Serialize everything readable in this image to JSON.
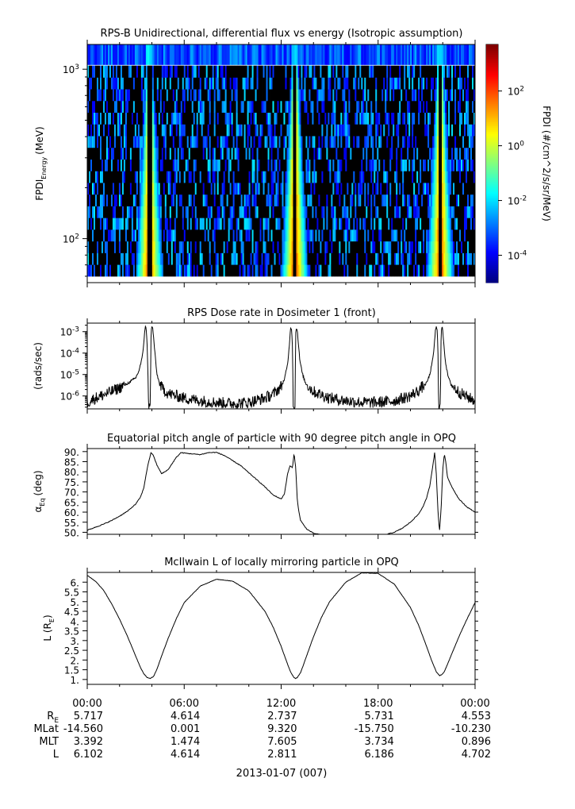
{
  "date_label": "2013-01-07 (007)",
  "ephemeris": {
    "times": [
      "00:00",
      "06:00",
      "12:00",
      "18:00",
      "00:00"
    ],
    "rows": [
      {
        "label": "R",
        "sub": "E",
        "values": [
          "5.717",
          "4.614",
          "2.737",
          "5.731",
          "4.553"
        ]
      },
      {
        "label": "MLat",
        "sub": "",
        "values": [
          "-14.560",
          "0.001",
          "9.320",
          "-15.750",
          "-10.230"
        ]
      },
      {
        "label": "MLT",
        "sub": "",
        "values": [
          "3.392",
          "1.474",
          "7.605",
          "3.734",
          "0.896"
        ]
      },
      {
        "label": "L",
        "sub": "",
        "values": [
          "6.102",
          "4.614",
          "2.811",
          "6.186",
          "4.702"
        ]
      }
    ]
  },
  "chart_data": [
    {
      "type": "heatmap",
      "title": "RPS-B  Unidirectional, differential flux vs energy (Isotropic assumption)",
      "ylabel": "FPDI",
      "ylabel_sub": "Energy",
      "ylabel_unit": "(MeV)",
      "yscale": "log",
      "ylim": [
        55,
        1400
      ],
      "yticks": [
        {
          "value": 100,
          "base": "10",
          "exp": "2"
        },
        {
          "value": 1000,
          "base": "10",
          "exp": "3"
        }
      ],
      "xlim_hours": [
        0,
        24
      ],
      "colorbar": {
        "label": "FPDI (#/cm^2/s/sr/MeV)",
        "scale": "log",
        "range_exp": [
          -5,
          3.7
        ],
        "ticks": [
          {
            "base": "10",
            "exp": "-4"
          },
          {
            "base": "10",
            "exp": "-2"
          },
          {
            "base": "10",
            "exp": "0"
          },
          {
            "base": "10",
            "exp": "2"
          }
        ],
        "tick_exps": [
          -4,
          -2,
          0,
          2
        ]
      },
      "belt_crossings_hours": [
        3.8,
        12.8,
        21.8
      ]
    },
    {
      "type": "line",
      "title": "RPS  Dose rate in Dosimeter 1 (front)",
      "ylabel": "(rads/sec)",
      "yscale": "log",
      "ylim": [
        2.5e-07,
        0.0025
      ],
      "yticks": [
        {
          "base": "10",
          "exp": "-6"
        },
        {
          "base": "10",
          "exp": "-5"
        },
        {
          "base": "10",
          "exp": "-4"
        },
        {
          "base": "10",
          "exp": "-3"
        }
      ],
      "ytick_exps": [
        -6,
        -5,
        -4,
        -3
      ],
      "x_hours": [
        0,
        0.5,
        1,
        1.5,
        2,
        2.5,
        3,
        3.2,
        3.4,
        3.5,
        3.55,
        3.6,
        3.65,
        3.7,
        3.75,
        3.8,
        3.85,
        3.9,
        3.95,
        4.0,
        4.05,
        4.1,
        4.2,
        4.3,
        4.5,
        5,
        6,
        7,
        8,
        9,
        10,
        11,
        11.5,
        12,
        12.2,
        12.4,
        12.5,
        12.55,
        12.6,
        12.65,
        12.7,
        12.75,
        12.8,
        12.85,
        12.9,
        12.95,
        13.0,
        13.05,
        13.15,
        13.3,
        13.5,
        14,
        15,
        16,
        17,
        18,
        19,
        20,
        20.5,
        21,
        21.2,
        21.4,
        21.5,
        21.55,
        21.6,
        21.65,
        21.7,
        21.75,
        21.8,
        21.85,
        21.9,
        21.95,
        22.0,
        22.05,
        22.15,
        22.3,
        22.5,
        23,
        23.5,
        24
      ],
      "y_rads": [
        5e-07,
        8e-07,
        1.1e-06,
        1.6e-06,
        2.4e-06,
        3.8e-06,
        7e-06,
        1.5e-05,
        6e-05,
        0.0003,
        0.001,
        0.0016,
        0.0014,
        0.0003,
        2e-05,
        3e-07,
        3e-07,
        3e-07,
        0.001,
        0.0016,
        0.0015,
        0.0006,
        8e-05,
        1.2e-05,
        3e-06,
        1.3e-06,
        8e-07,
        6e-07,
        5e-07,
        4.5e-07,
        5e-07,
        8e-07,
        1.2e-06,
        2.8e-06,
        6e-06,
        3e-05,
        0.0002,
        0.0008,
        0.0016,
        0.0013,
        0.0002,
        3e-07,
        3e-07,
        3e-07,
        0.0008,
        0.0015,
        0.0012,
        0.0004,
        5e-05,
        1.2e-05,
        4e-06,
        1.6e-06,
        8e-07,
        6e-07,
        5e-07,
        5e-07,
        6e-07,
        1e-06,
        1.8e-06,
        4e-06,
        1e-05,
        6e-05,
        0.0004,
        0.0012,
        0.0016,
        0.0012,
        0.0002,
        3e-07,
        3e-07,
        3e-07,
        0.001,
        0.0016,
        0.0012,
        0.0004,
        5e-05,
        1e-05,
        3.5e-06,
        1.5e-06,
        9e-07,
        6e-07
      ]
    },
    {
      "type": "line",
      "title": "Equatorial pitch angle of particle with 90 degree pitch angle in OPQ",
      "ylabel": "α",
      "ylabel_sub": "Eq",
      "ylabel_unit": "(deg)",
      "ylim": [
        49,
        91.5
      ],
      "yticks": [
        "50.",
        "55.",
        "60.",
        "65.",
        "70.",
        "75.",
        "80.",
        "85.",
        "90."
      ],
      "ytick_values": [
        50,
        55,
        60,
        65,
        70,
        75,
        80,
        85,
        90
      ],
      "x_hours": [
        0,
        0.5,
        1,
        1.5,
        2,
        2.5,
        3,
        3.3,
        3.5,
        3.65,
        3.8,
        3.95,
        4.1,
        4.3,
        4.6,
        5,
        5.5,
        5.8,
        6.3,
        7,
        7.5,
        8,
        8.5,
        9,
        9.5,
        10,
        10.5,
        11,
        11.5,
        12,
        12.2,
        12.4,
        12.55,
        12.7,
        12.8,
        12.9,
        12.95,
        13.0,
        13.1,
        13.2,
        13.4,
        13.6,
        13.8,
        14,
        14.3,
        14.6,
        15,
        16,
        17,
        18,
        18.5,
        19,
        19.5,
        20,
        20.5,
        20.8,
        21,
        21.2,
        21.4,
        21.5,
        21.6,
        21.7,
        21.8,
        21.9,
        22.0,
        22.1,
        22.2,
        22.3,
        22.6,
        23,
        23.5,
        24
      ],
      "y_deg": [
        51,
        52.5,
        54,
        55.8,
        58,
        60.5,
        64,
        67.5,
        72,
        79,
        85,
        89.5,
        88,
        83.5,
        79,
        81,
        87,
        89.5,
        89,
        88.5,
        89.5,
        89.6,
        88,
        85.5,
        83,
        79.5,
        76,
        72.5,
        68.5,
        66.5,
        69,
        79,
        83,
        82,
        89,
        82,
        74,
        66,
        60,
        56,
        53.5,
        51.5,
        50.5,
        49.5,
        49,
        48.8,
        48.6,
        48.5,
        48.5,
        48.6,
        48.9,
        50,
        52,
        55,
        59,
        63,
        67,
        73,
        84,
        89.5,
        79,
        61,
        50.5,
        62,
        81,
        89,
        84,
        77,
        72,
        66.5,
        62.5,
        60
      ]
    },
    {
      "type": "line",
      "title": "McIlwain L of locally mirroring particle in OPQ",
      "ylabel": "L (R",
      "ylabel_sub": "E",
      "ylabel_unit": ")",
      "ylim": [
        0.75,
        6.5
      ],
      "yticks": [
        "1.",
        "1.5",
        "2.",
        "2.5",
        "3.",
        "3.5",
        "4.",
        "4.5",
        "5.",
        "5.5",
        "6."
      ],
      "ytick_values": [
        1,
        1.5,
        2,
        2.5,
        3,
        3.5,
        4,
        4.5,
        5,
        5.5,
        6
      ],
      "x_hours": [
        0,
        0.5,
        1,
        1.5,
        2,
        2.5,
        3,
        3.3,
        3.5,
        3.7,
        3.9,
        4.1,
        4.3,
        4.6,
        5,
        5.5,
        6,
        7,
        8,
        9,
        10,
        11,
        11.5,
        12,
        12.3,
        12.6,
        12.8,
        12.9,
        13.0,
        13.2,
        13.4,
        13.7,
        14,
        14.5,
        15,
        16,
        17,
        18,
        19,
        20,
        20.5,
        21,
        21.3,
        21.6,
        21.8,
        21.95,
        22.1,
        22.3,
        22.6,
        23,
        23.5,
        24
      ],
      "y_L": [
        6.35,
        6.05,
        5.6,
        4.9,
        4.1,
        3.2,
        2.2,
        1.6,
        1.3,
        1.1,
        1.05,
        1.15,
        1.5,
        2.2,
        3.1,
        4.1,
        4.95,
        5.8,
        6.15,
        6.05,
        5.55,
        4.5,
        3.7,
        2.7,
        2.0,
        1.35,
        1.1,
        1.05,
        1.1,
        1.35,
        1.8,
        2.5,
        3.2,
        4.2,
        5.0,
        6.0,
        6.48,
        6.45,
        5.9,
        4.7,
        3.8,
        2.7,
        2.0,
        1.4,
        1.2,
        1.25,
        1.4,
        1.8,
        2.4,
        3.2,
        4.1,
        4.95
      ]
    }
  ]
}
